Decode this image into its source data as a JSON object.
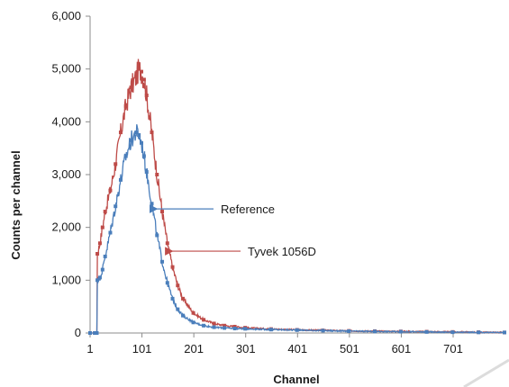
{
  "chart_data": {
    "type": "line",
    "title": "",
    "xlabel": "Channel",
    "ylabel": "Counts per channel",
    "xlim": [
      1,
      800
    ],
    "ylim": [
      0,
      6000
    ],
    "x_ticks": [
      1,
      101,
      201,
      301,
      401,
      501,
      601,
      701
    ],
    "x_tick_labels": [
      "1",
      "101",
      "201",
      "301",
      "401",
      "501",
      "601",
      "701"
    ],
    "y_ticks": [
      0,
      1000,
      2000,
      3000,
      4000,
      5000,
      6000
    ],
    "y_tick_labels": [
      "0",
      "1,000",
      "2,000",
      "3,000",
      "4,000",
      "5,000",
      "6,000"
    ],
    "grid": false,
    "annotations": [
      {
        "text": "Reference",
        "series": "Reference",
        "x": 130,
        "y": 2350,
        "color": "#4a7ebb"
      },
      {
        "text": "Tyvek 1056D",
        "series": "Tyvek 1056D",
        "x": 160,
        "y": 1550,
        "color": "#be4b48"
      }
    ],
    "series": [
      {
        "name": "Tyvek 1056D",
        "color": "#be4b48",
        "x": [
          1,
          10,
          14,
          15,
          20,
          25,
          30,
          40,
          50,
          60,
          70,
          80,
          90,
          95,
          100,
          105,
          110,
          120,
          130,
          140,
          150,
          160,
          170,
          180,
          200,
          220,
          240,
          260,
          280,
          300,
          350,
          400,
          450,
          500,
          550,
          600,
          650,
          700,
          750,
          800
        ],
        "values": [
          0,
          0,
          0,
          1500,
          1700,
          2000,
          2300,
          2700,
          3200,
          3800,
          4300,
          4650,
          4850,
          5000,
          4950,
          4800,
          4500,
          3800,
          3000,
          2300,
          1700,
          1250,
          900,
          650,
          380,
          250,
          180,
          140,
          120,
          100,
          75,
          60,
          50,
          40,
          35,
          30,
          25,
          20,
          15,
          10
        ]
      },
      {
        "name": "Reference",
        "color": "#4a7ebb",
        "x": [
          1,
          10,
          14,
          15,
          20,
          25,
          30,
          40,
          50,
          60,
          70,
          80,
          90,
          95,
          100,
          105,
          110,
          120,
          130,
          140,
          150,
          160,
          170,
          180,
          200,
          220,
          240,
          260,
          280,
          300,
          350,
          400,
          450,
          500,
          550,
          600,
          650,
          700,
          750,
          800
        ],
        "values": [
          0,
          0,
          0,
          1000,
          1050,
          1200,
          1450,
          1900,
          2400,
          2900,
          3350,
          3650,
          3800,
          3750,
          3600,
          3350,
          3050,
          2450,
          1850,
          1350,
          950,
          650,
          450,
          330,
          200,
          140,
          110,
          95,
          85,
          80,
          65,
          55,
          45,
          35,
          30,
          25,
          20,
          15,
          12,
          10
        ]
      }
    ]
  }
}
